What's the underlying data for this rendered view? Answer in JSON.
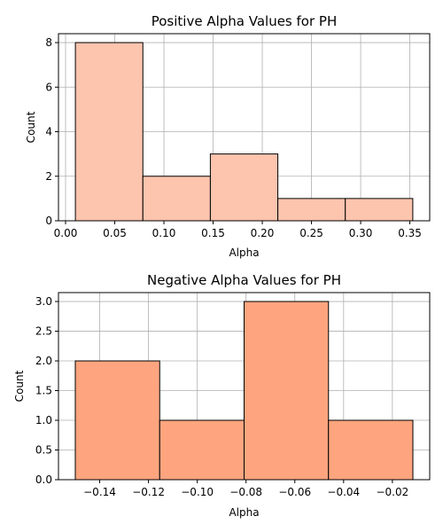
{
  "chart_data": [
    {
      "type": "bar",
      "title": "Positive Alpha Values for PH",
      "xlabel": "Alpha",
      "ylabel": "Count",
      "bin_edges": [
        0.01,
        0.0786,
        0.1472,
        0.2158,
        0.2844,
        0.353
      ],
      "values": [
        8,
        2,
        3,
        1,
        1
      ],
      "xlim": [
        -0.0072,
        0.3702
      ],
      "ylim": [
        0,
        8.4
      ],
      "xticks": [
        0.0,
        0.05,
        0.1,
        0.15,
        0.2,
        0.25,
        0.3,
        0.35
      ],
      "xtick_labels": [
        "0.00",
        "0.05",
        "0.10",
        "0.15",
        "0.20",
        "0.25",
        "0.30",
        "0.35"
      ],
      "yticks": [
        0,
        2,
        4,
        6,
        8
      ],
      "ytick_labels": [
        "0",
        "2",
        "4",
        "6",
        "8"
      ],
      "grid": true,
      "bar_color": "#fdc4ae"
    },
    {
      "type": "bar",
      "title": "Negative Alpha Values for PH",
      "xlabel": "Alpha",
      "ylabel": "Count",
      "bin_edges": [
        -0.15,
        -0.1154,
        -0.0808,
        -0.0462,
        -0.0116
      ],
      "values": [
        2,
        1,
        3,
        1
      ],
      "xlim": [
        -0.1569,
        -0.0047
      ],
      "ylim": [
        0,
        3.15
      ],
      "xticks": [
        -0.14,
        -0.12,
        -0.1,
        -0.08,
        -0.06,
        -0.04,
        -0.02
      ],
      "xtick_labels": [
        "−0.14",
        "−0.12",
        "−0.10",
        "−0.08",
        "−0.06",
        "−0.04",
        "−0.02"
      ],
      "yticks": [
        0,
        0.5,
        1.0,
        1.5,
        2.0,
        2.5,
        3.0
      ],
      "ytick_labels": [
        "0.0",
        "0.5",
        "1.0",
        "1.5",
        "2.0",
        "2.5",
        "3.0"
      ],
      "grid": true,
      "bar_color": "#fea57f"
    }
  ]
}
